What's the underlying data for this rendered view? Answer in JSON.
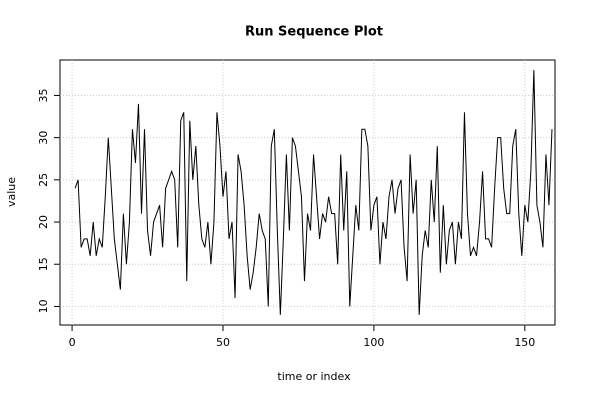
{
  "chart_data": {
    "type": "line",
    "title": "Run Sequence Plot",
    "xlabel": "time or index",
    "ylabel": "value",
    "x": [
      1,
      2,
      3,
      4,
      5,
      6,
      7,
      8,
      9,
      10,
      11,
      12,
      13,
      14,
      15,
      16,
      17,
      18,
      19,
      20,
      21,
      22,
      23,
      24,
      25,
      26,
      27,
      28,
      29,
      30,
      31,
      32,
      33,
      34,
      35,
      36,
      37,
      38,
      39,
      40,
      41,
      42,
      43,
      44,
      45,
      46,
      47,
      48,
      49,
      50,
      51,
      52,
      53,
      54,
      55,
      56,
      57,
      58,
      59,
      60,
      61,
      62,
      63,
      64,
      65,
      66,
      67,
      68,
      69,
      70,
      71,
      72,
      73,
      74,
      75,
      76,
      77,
      78,
      79,
      80,
      81,
      82,
      83,
      84,
      85,
      86,
      87,
      88,
      89,
      90,
      91,
      92,
      93,
      94,
      95,
      96,
      97,
      98,
      99,
      100,
      101,
      102,
      103,
      104,
      105,
      106,
      107,
      108,
      109,
      110,
      111,
      112,
      113,
      114,
      115,
      116,
      117,
      118,
      119,
      120,
      121,
      122,
      123,
      124,
      125,
      126,
      127,
      128,
      129,
      130,
      131,
      132,
      133,
      134,
      135,
      136,
      137,
      138,
      139,
      140,
      141,
      142,
      143,
      144,
      145,
      146,
      147,
      148,
      149,
      150,
      151,
      152,
      153,
      154,
      155,
      156,
      157,
      158,
      159
    ],
    "values": [
      24,
      25,
      17,
      18,
      18,
      16,
      20,
      16,
      18,
      17,
      23,
      30,
      24,
      18,
      15,
      12,
      21,
      15,
      20,
      31,
      27,
      34,
      21,
      31,
      19,
      16,
      20,
      21,
      22,
      17,
      24,
      25,
      26,
      25,
      17,
      32,
      33,
      13,
      32,
      25,
      29,
      22,
      18,
      17,
      20,
      15,
      20,
      33,
      29,
      23,
      26,
      18,
      20,
      11,
      28,
      26,
      22,
      16,
      12,
      14,
      17,
      21,
      19,
      18,
      10,
      29,
      31,
      19,
      9,
      18,
      28,
      19,
      30,
      29,
      26,
      23,
      13,
      21,
      19,
      28,
      23,
      18,
      21,
      20,
      23,
      21,
      21,
      15,
      28,
      19,
      26,
      10,
      16,
      22,
      19,
      31,
      31,
      29,
      19,
      22,
      23,
      15,
      20,
      18,
      23,
      25,
      21,
      24,
      25,
      17,
      13,
      28,
      21,
      25,
      9,
      16,
      19,
      17,
      25,
      20,
      29,
      14,
      22,
      15,
      19,
      20,
      15,
      20,
      18,
      33,
      21,
      16,
      17,
      16,
      20,
      26,
      18,
      18,
      17,
      24,
      30,
      30,
      24,
      21,
      21,
      29,
      31,
      21,
      16,
      22,
      20,
      26,
      38,
      22,
      20,
      17,
      28,
      22,
      31
    ],
    "color": "#000000",
    "xlim": [
      -4,
      160
    ],
    "ylim": [
      7.8,
      39.2
    ],
    "xticks": [
      0,
      50,
      100,
      150
    ],
    "yticks": [
      10,
      15,
      20,
      25,
      30,
      35
    ],
    "grid": true
  }
}
